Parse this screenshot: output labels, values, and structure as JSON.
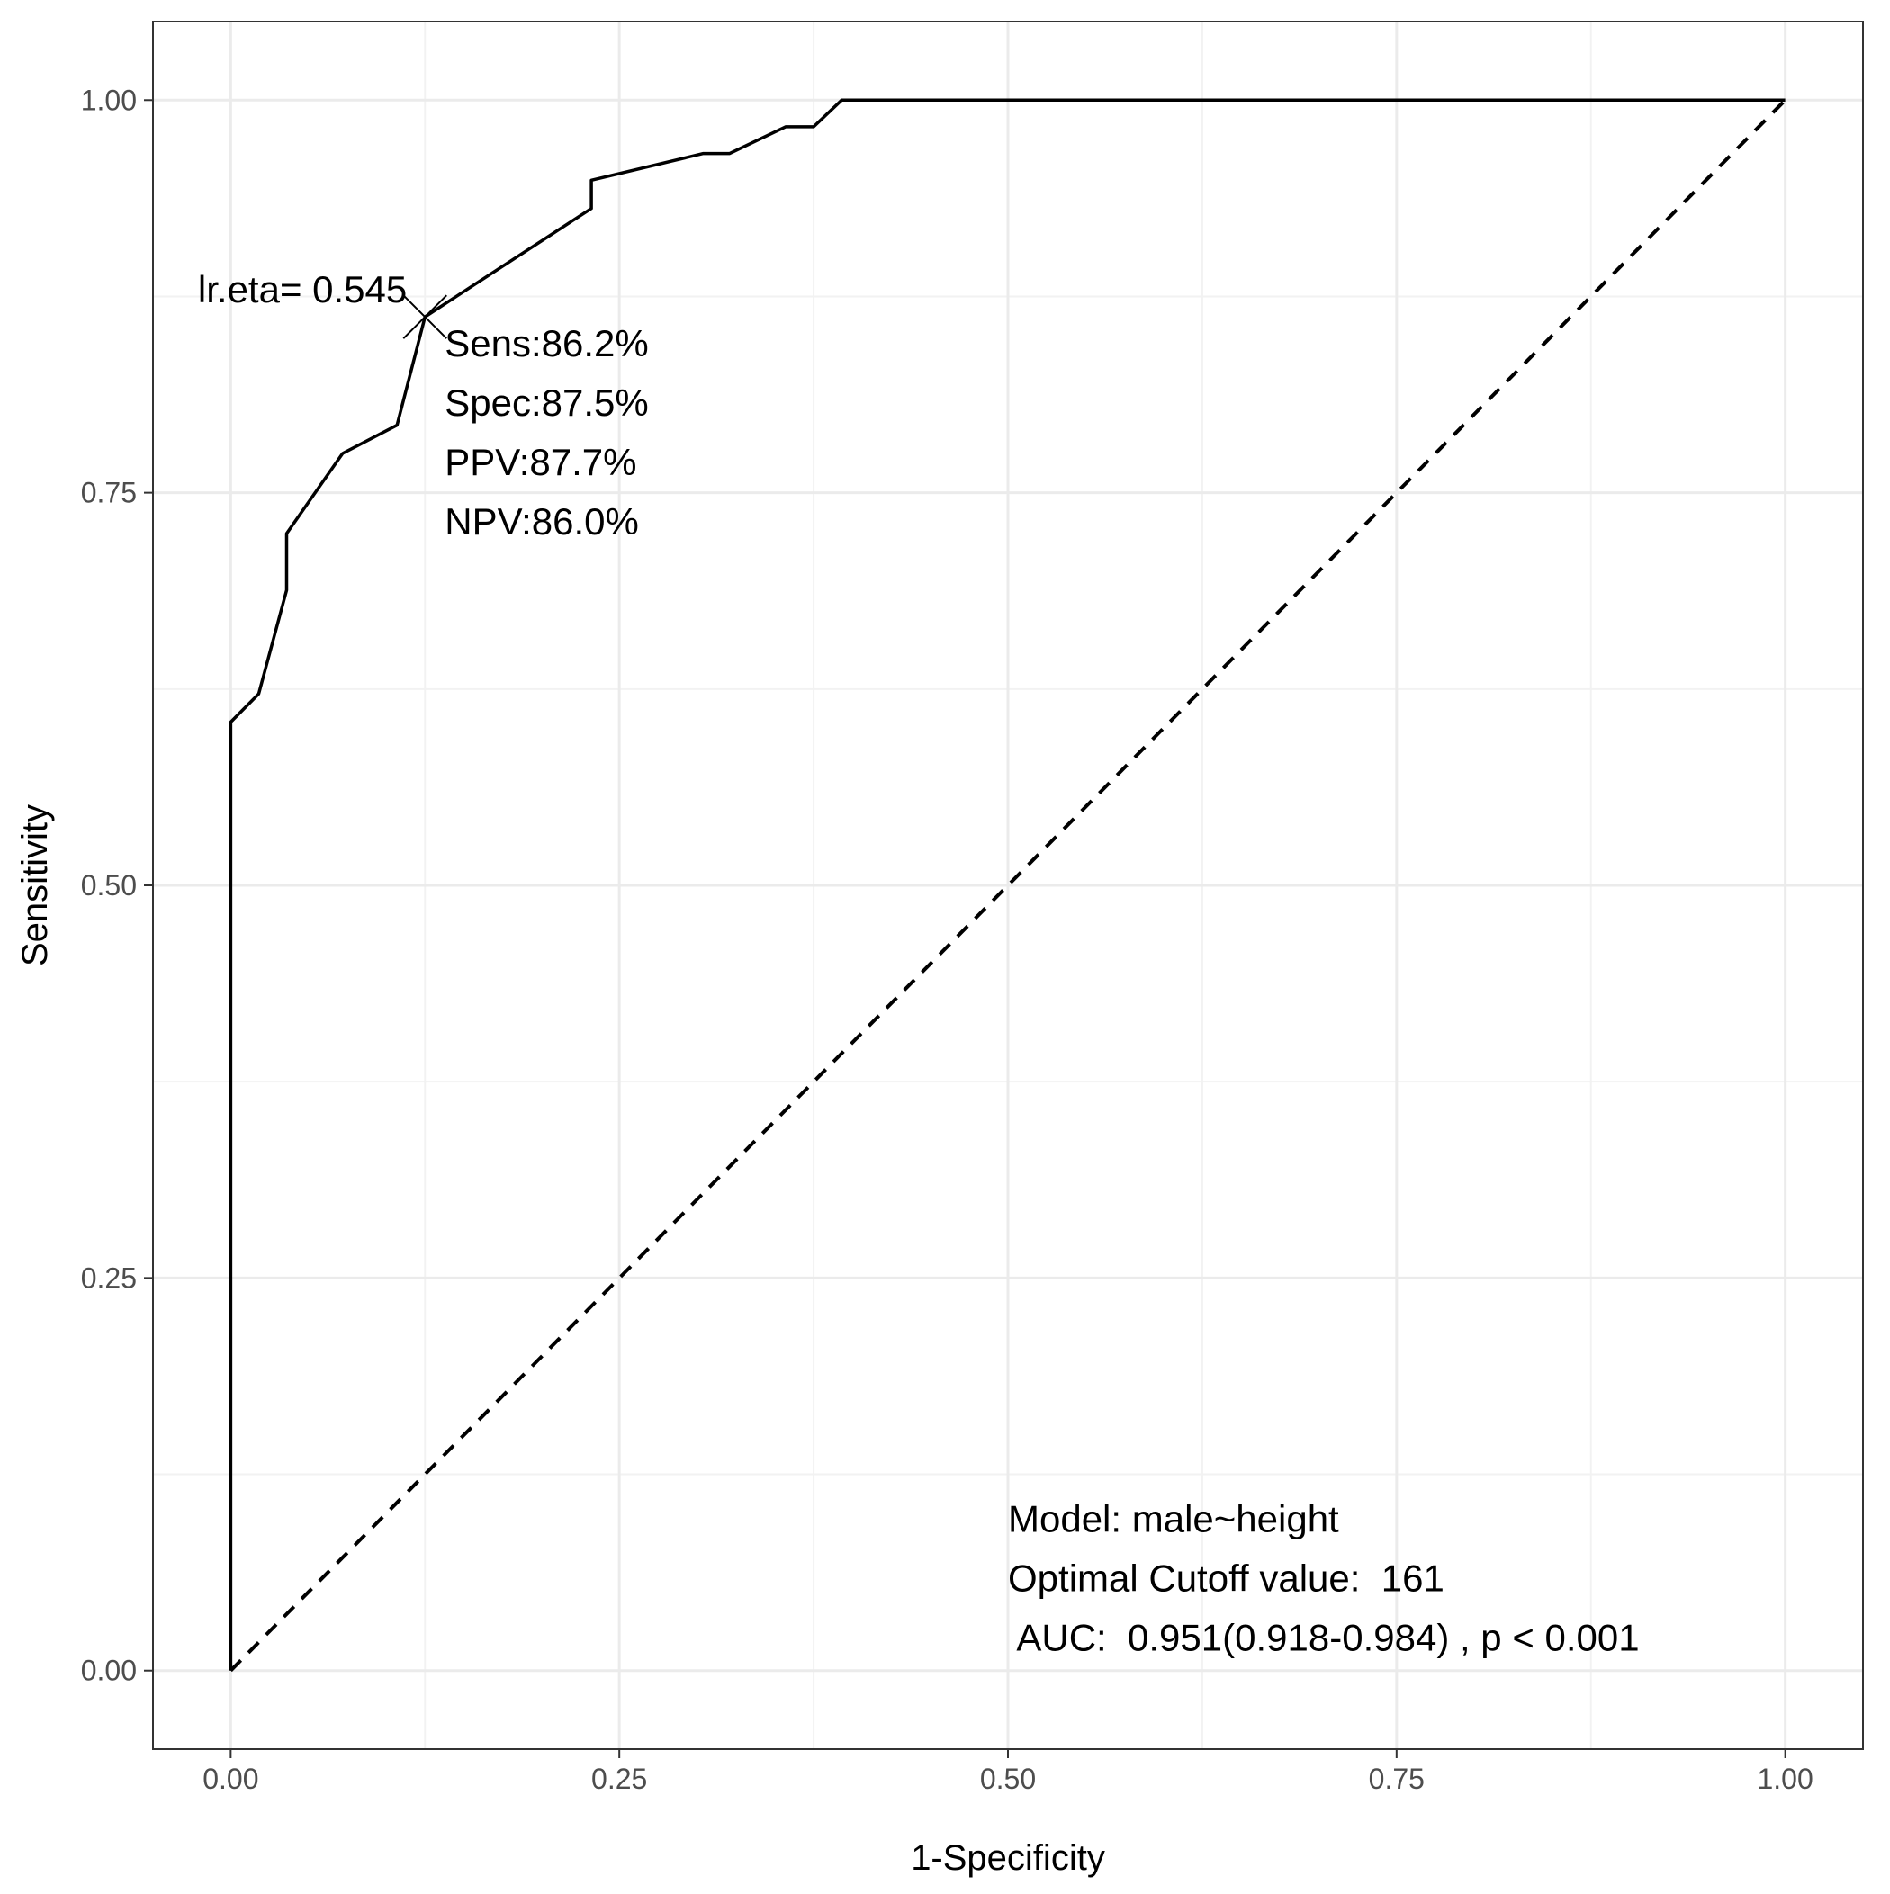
{
  "chart_data": {
    "type": "line",
    "xlabel": "1-Specificity",
    "ylabel": "Sensitivity",
    "xlim": [
      -0.05,
      1.05
    ],
    "ylim": [
      -0.05,
      1.05
    ],
    "x_ticks": [
      0,
      0.25,
      0.5,
      0.75,
      1
    ],
    "y_ticks": [
      0,
      0.25,
      0.5,
      0.75,
      1
    ],
    "x_tick_labels": [
      "0.00",
      "0.25",
      "0.50",
      "0.75",
      "1.00"
    ],
    "y_tick_labels": [
      "0.00",
      "0.25",
      "0.50",
      "0.75",
      "1.00"
    ],
    "grid": true,
    "series": [
      {
        "style": "solid",
        "x": [
          0,
          0,
          0.018,
          0.018,
          0.036,
          0.036,
          0.072,
          0.107,
          0.125,
          0.232,
          0.232,
          0.304,
          0.321,
          0.357,
          0.375,
          0.393,
          1.0
        ],
        "y": [
          0,
          0.604,
          0.622,
          0.622,
          0.688,
          0.724,
          0.775,
          0.793,
          0.862,
          0.931,
          0.949,
          0.966,
          0.966,
          0.983,
          0.983,
          1.0,
          1.0
        ]
      },
      {
        "style": "dashed",
        "x": [
          0,
          1
        ],
        "y": [
          0,
          1
        ]
      }
    ],
    "optimal_point": {
      "x": 0.125,
      "y": 0.862
    },
    "annotations": {
      "point_label": "lr.eta= 0.545",
      "point_stats": [
        "Sens:86.2%",
        "Spec:87.5%",
        "PPV:87.7%",
        "NPV:86.0%"
      ],
      "model_info": [
        "Model: male~height",
        "Optimal Cutoff value:  161",
        " AUC:  0.951(0.918-0.984) , p < 0.001"
      ]
    }
  },
  "colors": {
    "background": "#ffffff",
    "panel_border": "#333333",
    "grid_major": "#ebebeb",
    "grid_minor": "#f2f2f2",
    "line": "#000000",
    "tick_text": "#4d4d4d"
  }
}
